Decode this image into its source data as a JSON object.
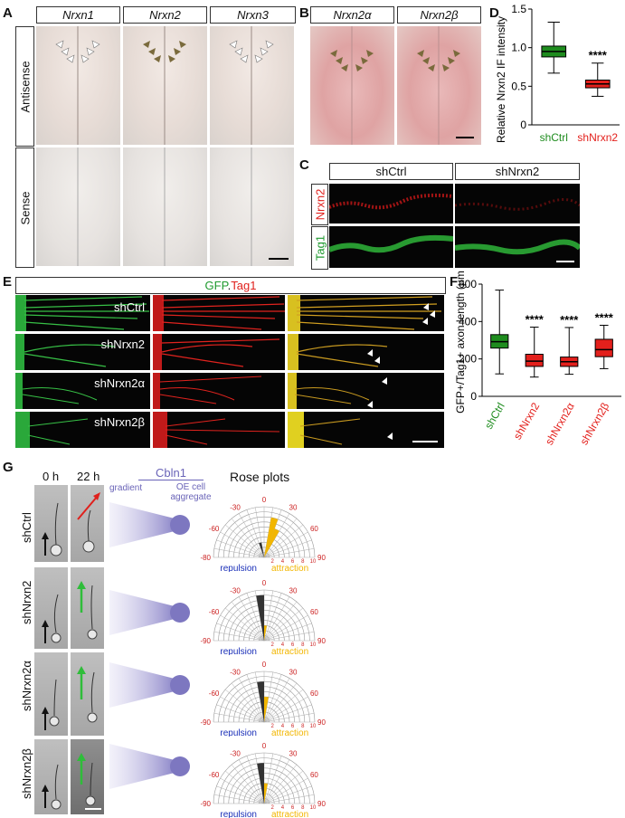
{
  "panel_letters": {
    "a": "A",
    "b": "B",
    "c": "C",
    "d": "D",
    "e": "E",
    "f": "F",
    "g": "G"
  },
  "panel_a": {
    "columns": [
      "Nrxn1",
      "Nrxn2",
      "Nrxn3"
    ],
    "rows": [
      "Antisense",
      "Sense"
    ]
  },
  "panel_b": {
    "columns": [
      "Nrxn2α",
      "Nrxn2β"
    ]
  },
  "panel_c": {
    "columns": [
      "shCtrl",
      "shNrxn2"
    ],
    "rows": [
      "Nrxn2",
      "Tag1"
    ],
    "colors": {
      "nrxn2": "#e0201c",
      "tag1": "#1f9a2f"
    }
  },
  "panel_e": {
    "title_gfp": "GFP",
    "title_sep": ".",
    "title_tag1": "Tag1",
    "rows": [
      "shCtrl",
      "shNrxn2",
      "shNrxn2α",
      "shNrxn2β"
    ]
  },
  "panel_g": {
    "time_labels": [
      "0 h",
      "22 h"
    ],
    "cbln1_label": "Cbln1",
    "gradient_label": "gradient",
    "aggregate_label": "OE cell aggregate",
    "rose_title": "Rose plots",
    "rows": [
      "shCtrl",
      "shNrxn2",
      "shNrxn2α",
      "shNrxn2β"
    ],
    "repulsion_label": "repulsion",
    "attraction_label": "attraction",
    "angle_labels": [
      "-30",
      "0",
      "30",
      "-60",
      "60",
      "-90",
      "90"
    ],
    "first_left_angle": "-80",
    "radial_labels": [
      "2",
      "4",
      "6",
      "8",
      "10"
    ],
    "colors": {
      "repulsion": "#1a2fb8",
      "attraction": "#f2b600",
      "angles": "#cc2222",
      "cbln1": "#8d87c9"
    }
  },
  "chart_data": [
    {
      "type": "box",
      "panel": "D",
      "ylabel": "Relative Nrxn2 IF intensity",
      "ylim": [
        0,
        1.5
      ],
      "yticks": [
        "0",
        "0.5",
        "1.0",
        "1.5"
      ],
      "categories": [
        "shCtrl",
        "shNrxn2"
      ],
      "boxes": [
        {
          "name": "shCtrl",
          "min": 0.67,
          "q1": 0.88,
          "median": 0.95,
          "q3": 1.02,
          "max": 1.33,
          "color": "#1e8c1e"
        },
        {
          "name": "shNrxn2",
          "min": 0.37,
          "q1": 0.48,
          "median": 0.53,
          "q3": 0.58,
          "max": 0.8,
          "color": "#e3201c"
        }
      ],
      "annotations": [
        "",
        "****"
      ]
    },
    {
      "type": "box",
      "panel": "F",
      "ylabel": "GFP+/Tag1+ axon length (μm)",
      "ylim": [
        0,
        600
      ],
      "yticks": [
        "0",
        "200",
        "400",
        "600"
      ],
      "categories": [
        "shCtrl",
        "shNrxn2",
        "shNrxn2α",
        "shNrxn2β"
      ],
      "boxes": [
        {
          "name": "shCtrl",
          "min": 120,
          "q1": 258,
          "median": 292,
          "q3": 330,
          "max": 568,
          "color": "#1e8c1e"
        },
        {
          "name": "shNrxn2",
          "min": 103,
          "q1": 160,
          "median": 188,
          "q3": 225,
          "max": 370,
          "color": "#e3201c"
        },
        {
          "name": "shNrxn2α",
          "min": 118,
          "q1": 160,
          "median": 185,
          "q3": 210,
          "max": 368,
          "color": "#e3201c"
        },
        {
          "name": "shNrxn2β",
          "min": 148,
          "q1": 212,
          "median": 250,
          "q3": 305,
          "max": 380,
          "color": "#e3201c"
        }
      ],
      "annotations": [
        "",
        "****",
        "****",
        "****"
      ]
    },
    {
      "type": "rose",
      "panel": "G",
      "rows": [
        {
          "name": "shCtrl",
          "bins": [
            {
              "angle": -15,
              "count": 3,
              "side": "repulsion"
            },
            {
              "angle": 15,
              "count": 8,
              "side": "attraction"
            },
            {
              "angle": 25,
              "count": 6,
              "side": "attraction"
            }
          ]
        },
        {
          "name": "shNrxn2",
          "bins": [
            {
              "angle": -5,
              "count": 9,
              "side": "repulsion"
            },
            {
              "angle": 5,
              "count": 3,
              "side": "attraction"
            }
          ]
        },
        {
          "name": "shNrxn2α",
          "bins": [
            {
              "angle": -5,
              "count": 8,
              "side": "repulsion"
            },
            {
              "angle": 5,
              "count": 5,
              "side": "attraction"
            }
          ]
        },
        {
          "name": "shNrxn2β",
          "bins": [
            {
              "angle": -5,
              "count": 8,
              "side": "repulsion"
            },
            {
              "angle": 5,
              "count": 4,
              "side": "attraction"
            }
          ]
        }
      ]
    }
  ]
}
